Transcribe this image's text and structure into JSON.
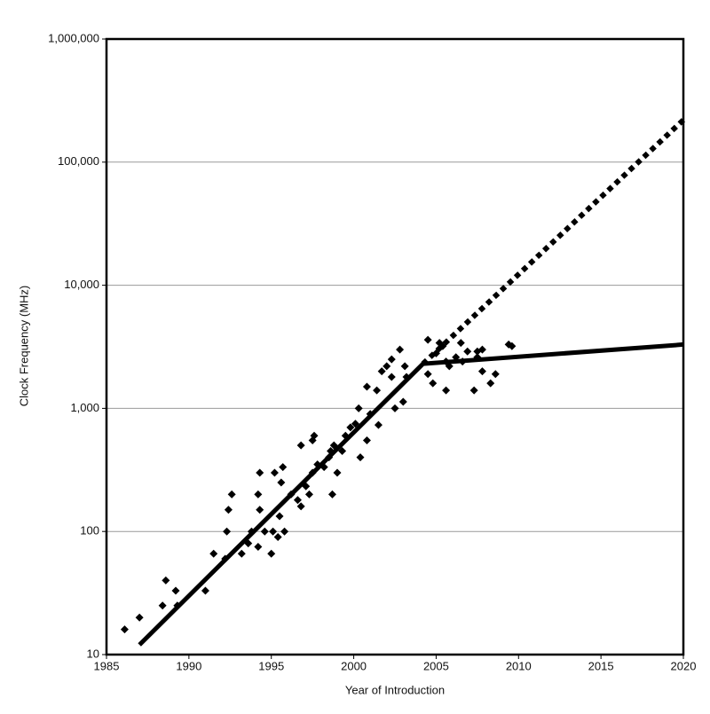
{
  "chart_data": {
    "type": "scatter",
    "x_label": "Year of Introduction",
    "y_label": "Clock Frequency (MHz)",
    "xlim": [
      1985,
      2020
    ],
    "xticks": [
      1985,
      1990,
      1995,
      2000,
      2005,
      2010,
      2015,
      2020
    ],
    "ylim": [
      10,
      1000000
    ],
    "yticks": [
      10,
      100,
      {
        "value": 1000,
        "label": "1,000"
      },
      {
        "value": 10000,
        "label": "10,000"
      },
      {
        "value": 100000,
        "label": "100,000"
      },
      {
        "value": 1000000,
        "label": "1,000,000"
      }
    ],
    "log_y": true,
    "grid": true,
    "series": [
      {
        "type": "scatter",
        "color": "#000000",
        "x": [
          1986.1,
          1987,
          1988.4,
          1988.6,
          1989.2,
          1989.3,
          1991,
          1991.5,
          1992.2,
          1992.3,
          1992.4,
          1992.6,
          1993.2,
          1993.6,
          1993.8,
          1994.2,
          1994.2,
          1994.3,
          1994.3,
          1994.6,
          1995,
          1995.1,
          1995.2,
          1995.4,
          1995.5,
          1995.7,
          1995.8,
          1995.6,
          1996.2,
          1996.6,
          1996.8,
          1996.8,
          1997.1,
          1997.3,
          1997.5,
          1997.5,
          1997.6,
          1997.8,
          1998.2,
          1998.5,
          1998.6,
          1998.7,
          1998.8,
          1999,
          1999.3,
          1999.5,
          1999.8,
          2000.1,
          2000.3,
          2000.4,
          2000.8,
          2000.8,
          2001,
          2001.4,
          2001.5,
          2001.7,
          2002,
          2002.3,
          2002.3,
          2002.5,
          2002.8,
          2003,
          2003.1,
          2003.2,
          2004.5,
          2004.5,
          2004.8,
          2005,
          2005.2,
          2005.4,
          2005.6,
          2005.6,
          2005.8,
          2006.2,
          2006.5,
          2006.6,
          2006.9,
          2007.3,
          2007.5,
          2007.5,
          2007.8,
          2007.8,
          2008.3,
          2008.6,
          2009.4,
          2009.6
        ],
        "values": [
          16,
          20,
          25,
          40,
          33,
          25,
          33,
          66,
          60,
          100,
          150,
          200,
          66,
          80,
          100,
          75,
          200,
          300,
          150,
          100,
          66,
          100,
          300,
          90,
          133,
          333,
          100,
          250,
          200,
          180,
          160,
          500,
          233,
          200,
          300,
          550,
          600,
          350,
          333,
          400,
          450,
          200,
          500,
          300,
          450,
          600,
          700,
          750,
          1000,
          400,
          550,
          1500,
          900,
          1400,
          733,
          2000,
          2200,
          1800,
          2500,
          1000,
          3000,
          1130,
          2200,
          1800,
          3600,
          1900,
          1600,
          2800,
          3400,
          3200,
          2400,
          1400,
          2200,
          2600,
          3400,
          2400,
          2900,
          1400,
          2600,
          2900,
          2000,
          3000,
          1600,
          1900,
          3300,
          3200
        ]
      },
      {
        "type": "line",
        "color": "#000000",
        "dash": "solid",
        "x": [
          1987,
          2004.2,
          2020
        ],
        "values": [
          12,
          2300,
          3300
        ]
      },
      {
        "type": "line",
        "color": "#000000",
        "dash": "dotted",
        "x": [
          2004.2,
          2020
        ],
        "values": [
          2300,
          220000
        ]
      }
    ]
  }
}
